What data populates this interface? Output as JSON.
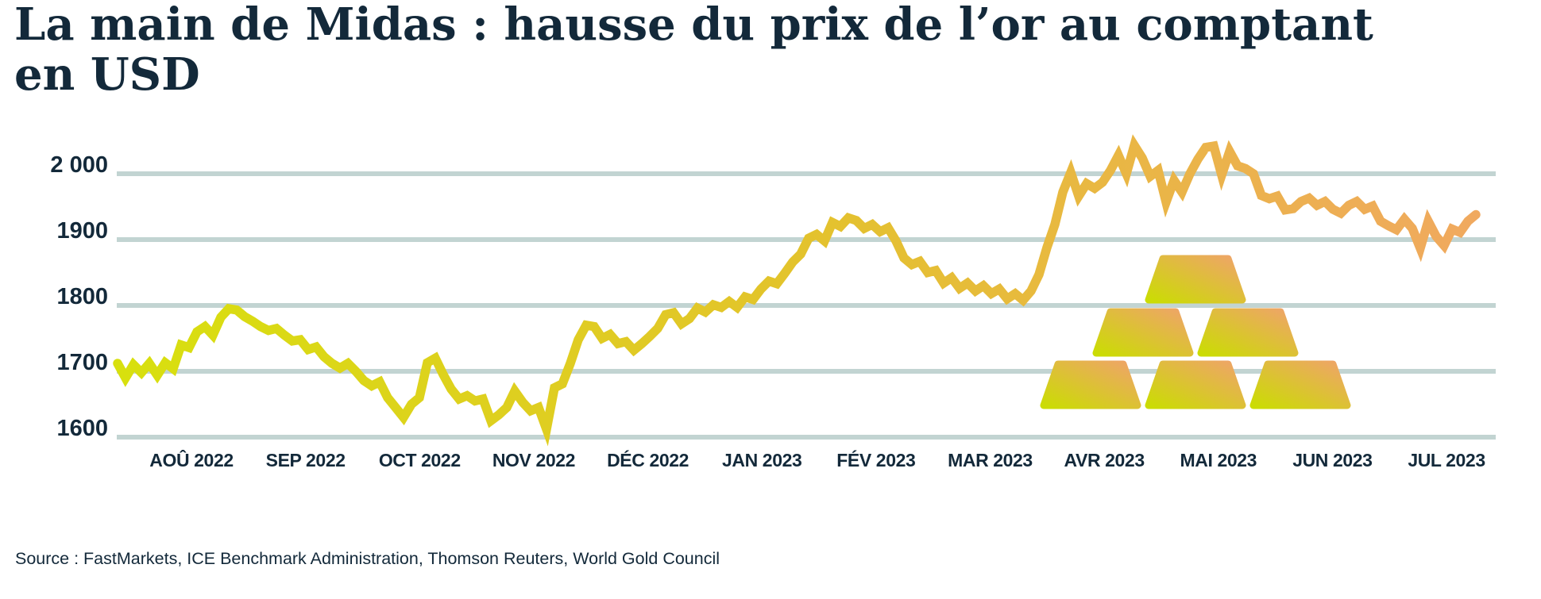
{
  "page": {
    "title_line1": "La main de Midas : hausse du prix de l’or au comptant",
    "title_line2": "en USD",
    "source": "Source : FastMarkets, ICE Benchmark Administration, Thomson Reuters, World Gold Council"
  },
  "colors": {
    "text_navy": "#13293a",
    "gridline": "#c2d4d2",
    "line_gradient_start": "#d8e00e",
    "line_gradient_mid": "#e3c32c",
    "line_gradient_end": "#f0a95f",
    "gold_bar_gradient_start": "#cbdc04",
    "gold_bar_gradient_end": "#efa469"
  },
  "illustration": {
    "name": "gold-bars-pyramid",
    "bar_count": 6,
    "rows_bottom_to_top": [
      3,
      2,
      1
    ]
  },
  "chart_data": {
    "type": "line",
    "title": "La main de Midas : hausse du prix de l’or au comptant en USD",
    "xlabel": "",
    "ylabel": "",
    "grid": true,
    "legend": false,
    "ylim": [
      1589,
      2060
    ],
    "y_ticks": [
      {
        "value": 2000,
        "label": "2 000"
      },
      {
        "value": 1900,
        "label": "1900"
      },
      {
        "value": 1800,
        "label": "1800"
      },
      {
        "value": 1700,
        "label": "1700"
      },
      {
        "value": 1600,
        "label": "1600"
      }
    ],
    "x_ticks": [
      "AOÛ 2022",
      "SEP 2022",
      "OCT 2022",
      "NOV 2022",
      "DÉC 2022",
      "JAN 2023",
      "FÉV 2023",
      "MAR 2023",
      "AVR 2023",
      "MAI 2023",
      "JUN 2023",
      "JUL 2023"
    ],
    "series": [
      {
        "name": "Prix de l’or au comptant (USD)",
        "values": [
          1712,
          1690,
          1710,
          1698,
          1712,
          1694,
          1713,
          1704,
          1740,
          1736,
          1760,
          1768,
          1755,
          1782,
          1795,
          1793,
          1783,
          1776,
          1768,
          1762,
          1765,
          1755,
          1746,
          1748,
          1733,
          1737,
          1722,
          1712,
          1705,
          1712,
          1700,
          1686,
          1678,
          1684,
          1660,
          1645,
          1630,
          1650,
          1660,
          1713,
          1720,
          1695,
          1673,
          1658,
          1663,
          1655,
          1658,
          1625,
          1634,
          1645,
          1670,
          1653,
          1640,
          1645,
          1612,
          1675,
          1681,
          1712,
          1748,
          1770,
          1768,
          1750,
          1756,
          1742,
          1745,
          1732,
          1742,
          1753,
          1765,
          1786,
          1789,
          1772,
          1780,
          1796,
          1790,
          1801,
          1797,
          1806,
          1797,
          1813,
          1809,
          1825,
          1837,
          1833,
          1849,
          1866,
          1878,
          1902,
          1908,
          1898,
          1926,
          1920,
          1933,
          1929,
          1917,
          1923,
          1912,
          1918,
          1898,
          1872,
          1862,
          1867,
          1850,
          1853,
          1834,
          1842,
          1826,
          1834,
          1822,
          1830,
          1818,
          1825,
          1810,
          1818,
          1808,
          1822,
          1847,
          1888,
          1923,
          1972,
          2002,
          1966,
          1985,
          1978,
          1987,
          2005,
          2028,
          2000,
          2043,
          2024,
          1996,
          2005,
          1957,
          1990,
          1972,
          2000,
          2022,
          2040,
          2042,
          1998,
          2034,
          2012,
          2008,
          2000,
          1967,
          1962,
          1966,
          1945,
          1947,
          1958,
          1963,
          1952,
          1958,
          1946,
          1940,
          1952,
          1958,
          1946,
          1951,
          1928,
          1921,
          1915,
          1931,
          1917,
          1887,
          1928,
          1905,
          1891,
          1916,
          1911,
          1928,
          1938
        ]
      }
    ]
  }
}
